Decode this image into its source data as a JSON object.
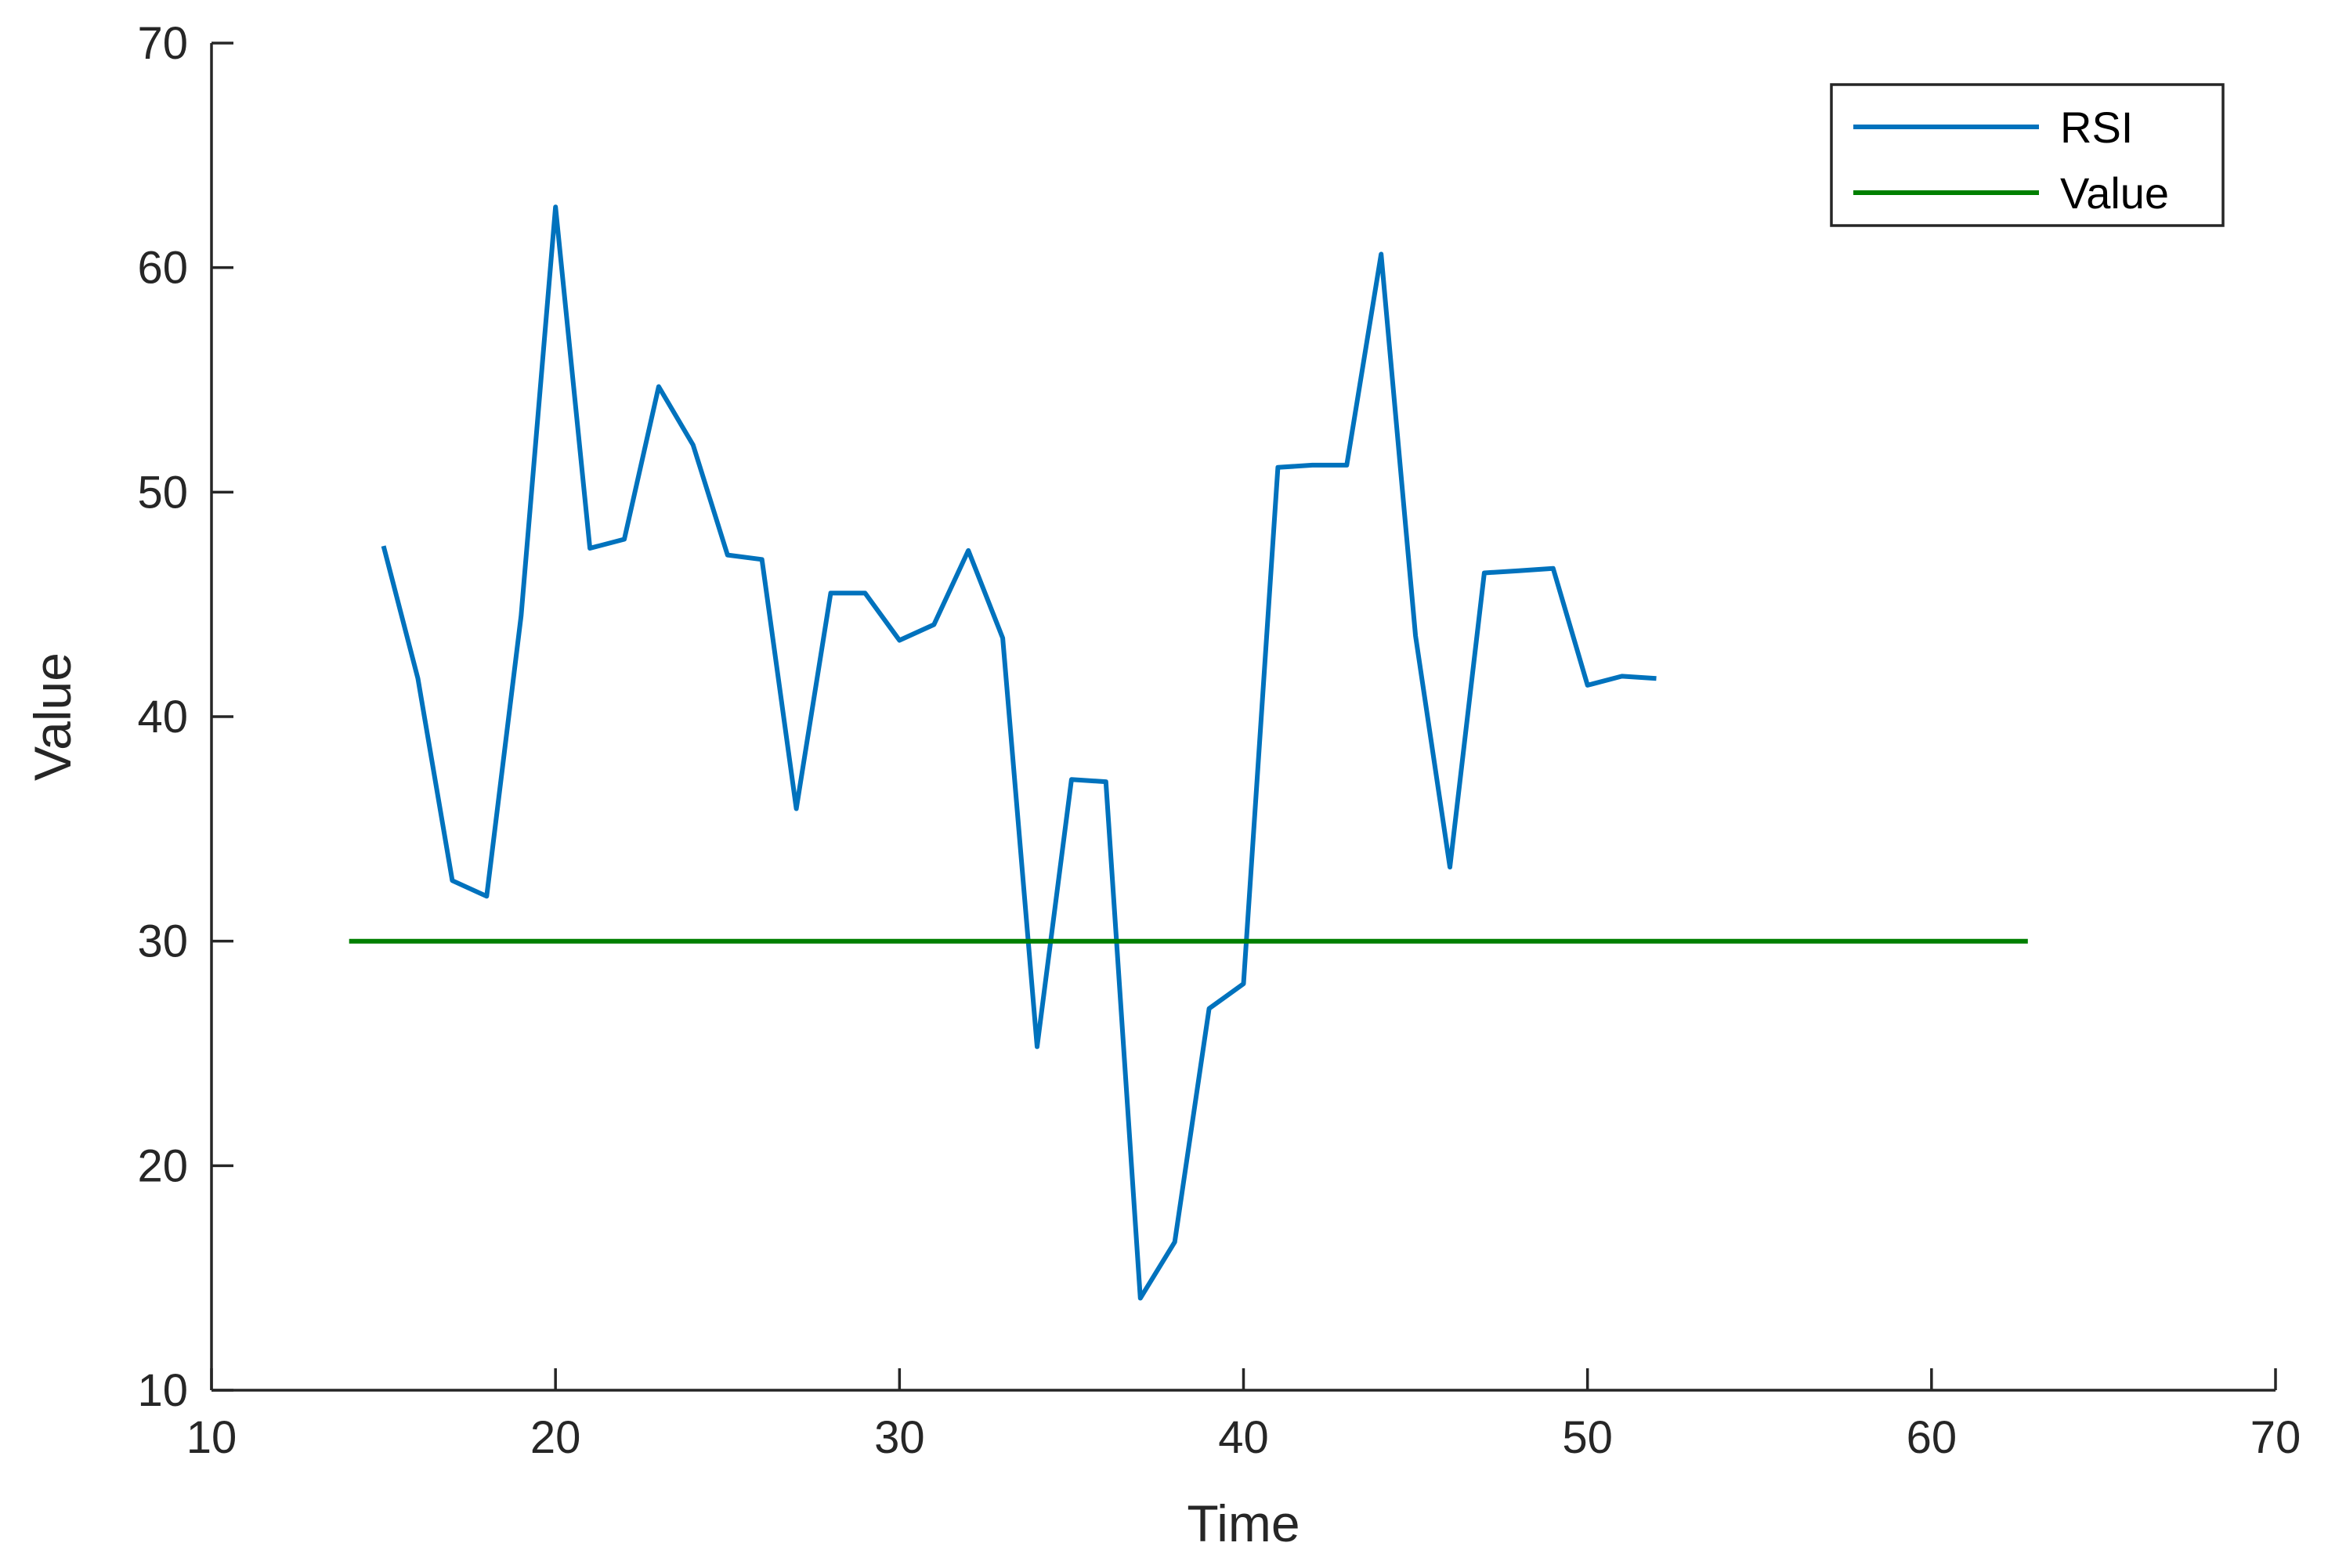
{
  "chart_data": {
    "type": "line",
    "title": "",
    "xlabel": "Time",
    "ylabel": "Value",
    "xlim": [
      10,
      70
    ],
    "ylim": [
      10,
      70
    ],
    "xticks": [
      10,
      20,
      30,
      40,
      50,
      60,
      70
    ],
    "yticks": [
      10,
      20,
      30,
      40,
      50,
      60,
      70
    ],
    "grid": false,
    "legend_position": "top-right",
    "series": [
      {
        "name": "RSI",
        "color": "#0072BD",
        "x": [
          15,
          16,
          17,
          18,
          19,
          20,
          21,
          22,
          23,
          24,
          25,
          26,
          27,
          28,
          29,
          30,
          31,
          32,
          33,
          34,
          35,
          36,
          37,
          38,
          39,
          40,
          41,
          42,
          43,
          44,
          45,
          46,
          47,
          48,
          49,
          50,
          51,
          52
        ],
        "y": [
          47.6,
          41.7,
          32.7,
          32.0,
          44.5,
          62.7,
          47.5,
          47.9,
          54.7,
          52.1,
          47.2,
          47.0,
          35.9,
          45.5,
          45.5,
          43.4,
          44.1,
          47.4,
          43.5,
          25.3,
          37.2,
          37.1,
          14.1,
          16.6,
          27.0,
          28.1,
          51.1,
          51.2,
          51.2,
          60.6,
          43.6,
          33.3,
          46.4,
          46.5,
          46.6,
          41.4,
          41.8,
          41.7
        ]
      },
      {
        "name": "Value",
        "color": "#007F00",
        "x": [
          14,
          62.8
        ],
        "y": [
          30,
          30
        ]
      }
    ]
  }
}
